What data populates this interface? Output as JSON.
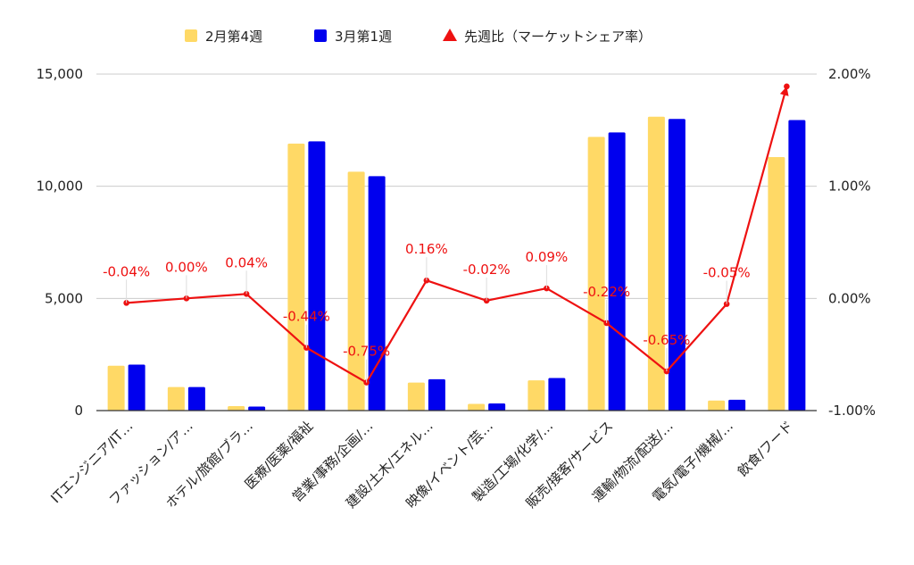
{
  "chart_data": {
    "type": "bar",
    "categories": [
      "ITエンジニア/IT…",
      "ファッション/ア…",
      "ホテル/旅館/ブラ…",
      "医療/医薬/福祉",
      "営業/事務/企画/…",
      "建設/土木/エネル…",
      "映像/イベント/芸…",
      "製造/工場/化学/…",
      "販売/接客/サービス",
      "運輸/物流/配送/…",
      "電気/電子/機械/…",
      "飲食/フード"
    ],
    "series": [
      {
        "name": "2月第4週",
        "type": "bar",
        "axis": "left",
        "color": "#FFD966",
        "values": [
          2000,
          1050,
          200,
          11900,
          10650,
          1250,
          300,
          1350,
          12200,
          13100,
          450,
          11300
        ]
      },
      {
        "name": "3月第1週",
        "type": "bar",
        "axis": "left",
        "color": "#0000EE",
        "values": [
          2050,
          1050,
          180,
          12000,
          10450,
          1400,
          320,
          1450,
          12400,
          13000,
          480,
          12950
        ]
      },
      {
        "name": "先週比（マーケットシェア率）",
        "type": "line",
        "axis": "right",
        "color": "#EE1111",
        "values": [
          -0.04,
          0.0,
          0.04,
          -0.44,
          -0.75,
          0.16,
          -0.02,
          0.09,
          -0.22,
          -0.65,
          -0.05,
          1.89
        ],
        "labels": [
          "-0.04%",
          "0.00%",
          "0.04%",
          "-0.44%",
          "-0.75%",
          "0.16%",
          "-0.02%",
          "0.09%",
          "-0.22%",
          "-0.65%",
          "-0.05%",
          ""
        ]
      }
    ],
    "ylim": [
      0,
      15000
    ],
    "y_ticks": [
      "0",
      "5,000",
      "10,000",
      "15,000"
    ],
    "y_tick_values": [
      0,
      5000,
      10000,
      15000
    ],
    "y2lim": [
      -1.0,
      2.0
    ],
    "y2_ticks": [
      "-1.00%",
      "0.00%",
      "1.00%",
      "2.00%"
    ],
    "y2_tick_values": [
      -1.0,
      0.0,
      1.0,
      2.0
    ],
    "grid": true,
    "legend_position": "top-center"
  }
}
